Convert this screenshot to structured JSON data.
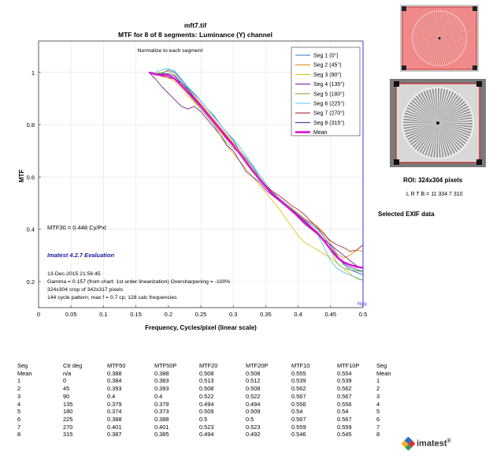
{
  "chart_data": {
    "type": "line",
    "title": "mft7.tif",
    "subtitle": "MTF for 8 of 8 segments:  Luminance (Y) channel",
    "note_top": "Normalize to each segment",
    "xlabel": "Frequency, Cycles/pixel (linear scale)",
    "ylabel": "MTF",
    "xlim": [
      0,
      0.5
    ],
    "ylim": [
      0.1,
      1.12
    ],
    "xticks": [
      "0",
      "0.05",
      "0.1",
      "0.15",
      "0.2",
      "0.25",
      "0.3",
      "0.35",
      "0.4",
      "0.45",
      "0.5"
    ],
    "xtick_values": [
      0,
      0.05,
      0.1,
      0.15,
      0.2,
      0.25,
      0.3,
      0.35,
      0.4,
      0.45,
      0.5
    ],
    "yticks": [
      "0.2",
      "0.4",
      "0.6",
      "0.8",
      "1"
    ],
    "ytick_values": [
      0.2,
      0.4,
      0.6,
      0.8,
      1.0
    ],
    "grid": true,
    "legend_position": "top-right",
    "nyquist_label": "Nyq",
    "nyquist_x": 0.5,
    "annotations": {
      "mtf30": "MTF30 = 0.448 Cy/Pxl",
      "evaluation": "Imatest 4.2.7 Evaluation",
      "info_lines": [
        "13-Dec-2015 21:56:45",
        "Gamma = 0.157 (from chart: 1st order linearization)  Oversharpening = -100%",
        "324x304 crop of 342x317 pixels",
        "144 cycle pattern;  max f = 0.7 cp;  128 calc frequencies"
      ]
    },
    "x": [
      0.17,
      0.18,
      0.19,
      0.2,
      0.21,
      0.22,
      0.23,
      0.24,
      0.25,
      0.26,
      0.27,
      0.28,
      0.29,
      0.3,
      0.31,
      0.32,
      0.33,
      0.34,
      0.35,
      0.36,
      0.37,
      0.38,
      0.39,
      0.4,
      0.41,
      0.42,
      0.43,
      0.44,
      0.45,
      0.46,
      0.47,
      0.48,
      0.49,
      0.5
    ],
    "series": [
      {
        "name": "Seg 1 (0°)",
        "color": "#2b74b8",
        "values": [
          1.0,
          0.995,
          0.995,
          1.01,
          1.0,
          0.97,
          0.94,
          0.915,
          0.89,
          0.86,
          0.835,
          0.8,
          0.77,
          0.74,
          0.7,
          0.67,
          0.64,
          0.6,
          0.565,
          0.54,
          0.52,
          0.5,
          0.48,
          0.46,
          0.44,
          0.42,
          0.4,
          0.37,
          0.335,
          0.3,
          0.265,
          0.245,
          0.235,
          0.225
        ]
      },
      {
        "name": "Seg 2 (45°)",
        "color": "#e08a1a",
        "values": [
          1.0,
          0.995,
          1.0,
          1.005,
          0.99,
          0.96,
          0.93,
          0.905,
          0.88,
          0.85,
          0.82,
          0.79,
          0.76,
          0.73,
          0.7,
          0.665,
          0.63,
          0.595,
          0.57,
          0.545,
          0.52,
          0.5,
          0.48,
          0.46,
          0.44,
          0.425,
          0.41,
          0.385,
          0.345,
          0.305,
          0.29,
          0.3,
          0.32,
          0.315
        ]
      },
      {
        "name": "Seg 3 (90°)",
        "color": "#e0c21a",
        "values": [
          1.0,
          0.99,
          0.985,
          0.98,
          0.965,
          0.94,
          0.91,
          0.885,
          0.86,
          0.83,
          0.8,
          0.77,
          0.72,
          0.69,
          0.66,
          0.63,
          0.6,
          0.57,
          0.54,
          0.51,
          0.48,
          0.445,
          0.41,
          0.375,
          0.35,
          0.335,
          0.32,
          0.305,
          0.29,
          0.27,
          0.25,
          0.23,
          0.21,
          0.205
        ]
      },
      {
        "name": "Seg 4 (135°)",
        "color": "#7a2a8a",
        "values": [
          1.0,
          0.975,
          0.945,
          0.92,
          0.895,
          0.87,
          0.86,
          0.87,
          0.85,
          0.82,
          0.79,
          0.76,
          0.72,
          0.7,
          0.66,
          0.62,
          0.6,
          0.58,
          0.55,
          0.53,
          0.51,
          0.49,
          0.47,
          0.445,
          0.42,
          0.4,
          0.38,
          0.36,
          0.34,
          0.32,
          0.3,
          0.28,
          0.26,
          0.25
        ]
      },
      {
        "name": "Seg 5 (180°)",
        "color": "#7ab848",
        "values": [
          1.0,
          0.995,
          1.0,
          0.99,
          0.975,
          0.95,
          0.92,
          0.89,
          0.86,
          0.83,
          0.8,
          0.76,
          0.73,
          0.71,
          0.69,
          0.66,
          0.63,
          0.6,
          0.57,
          0.54,
          0.52,
          0.5,
          0.48,
          0.455,
          0.43,
          0.41,
          0.39,
          0.36,
          0.32,
          0.27,
          0.25,
          0.245,
          0.24,
          0.235
        ]
      },
      {
        "name": "Seg 6 (225°)",
        "color": "#5ac0e8",
        "values": [
          1.0,
          1.0,
          1.01,
          1.015,
          1.005,
          0.975,
          0.945,
          0.92,
          0.89,
          0.86,
          0.83,
          0.8,
          0.77,
          0.745,
          0.715,
          0.68,
          0.645,
          0.61,
          0.575,
          0.545,
          0.52,
          0.5,
          0.475,
          0.455,
          0.43,
          0.41,
          0.38,
          0.33,
          0.28,
          0.25,
          0.235,
          0.225,
          0.215,
          0.205
        ]
      },
      {
        "name": "Seg 7 (270°)",
        "color": "#b02a2a",
        "values": [
          1.0,
          0.995,
          0.985,
          0.98,
          0.975,
          0.96,
          0.935,
          0.905,
          0.875,
          0.845,
          0.815,
          0.785,
          0.755,
          0.725,
          0.69,
          0.655,
          0.62,
          0.59,
          0.565,
          0.545,
          0.53,
          0.51,
          0.49,
          0.475,
          0.455,
          0.43,
          0.405,
          0.38,
          0.355,
          0.34,
          0.33,
          0.315,
          0.32,
          0.34
        ]
      },
      {
        "name": "Seg 8 (315°)",
        "color": "#2a4a9a",
        "values": [
          1.0,
          0.99,
          0.995,
          0.995,
          0.985,
          0.96,
          0.935,
          0.9,
          0.87,
          0.84,
          0.81,
          0.78,
          0.75,
          0.72,
          0.69,
          0.655,
          0.62,
          0.59,
          0.56,
          0.535,
          0.515,
          0.495,
          0.475,
          0.455,
          0.435,
          0.41,
          0.385,
          0.355,
          0.32,
          0.29,
          0.27,
          0.255,
          0.245,
          0.24
        ]
      },
      {
        "name": "Mean",
        "color": "#e010d0",
        "values": [
          1.0,
          0.993,
          0.99,
          0.988,
          0.975,
          0.95,
          0.923,
          0.898,
          0.87,
          0.84,
          0.81,
          0.78,
          0.747,
          0.72,
          0.69,
          0.655,
          0.623,
          0.592,
          0.562,
          0.536,
          0.514,
          0.493,
          0.471,
          0.449,
          0.427,
          0.405,
          0.384,
          0.355,
          0.323,
          0.293,
          0.274,
          0.264,
          0.256,
          0.252
        ]
      }
    ]
  },
  "roi": {
    "title": "ROI:  324x304 pixels",
    "lrtb": "L R  T B = 11 334  7 310",
    "exif": "Selected EXIF data"
  },
  "table": {
    "headers": [
      "Seg",
      "Ctr deg",
      "MTF50",
      "MTF50P",
      "MTF20",
      "MTF20P",
      "MTF10",
      "MTF10P",
      "Seg"
    ],
    "rows": [
      [
        "Mean",
        "n/a",
        "0.388",
        "0.388",
        "0.508",
        "0.508",
        "0.555",
        "0.554",
        "Mean"
      ],
      [
        "1",
        "0",
        "0.384",
        "0.383",
        "0.513",
        "0.512",
        "0.539",
        "0.539",
        "1"
      ],
      [
        "2",
        "45",
        "0.393",
        "0.393",
        "0.508",
        "0.508",
        "0.562",
        "0.562",
        "2"
      ],
      [
        "3",
        "90",
        "0.4",
        "0.4",
        "0.522",
        "0.522",
        "0.567",
        "0.567",
        "3"
      ],
      [
        "4",
        "135",
        "0.379",
        "0.379",
        "0.494",
        "0.494",
        "0.556",
        "0.556",
        "4"
      ],
      [
        "5",
        "180",
        "0.374",
        "0.373",
        "0.509",
        "0.509",
        "0.54",
        "0.54",
        "5"
      ],
      [
        "6",
        "225",
        "0.388",
        "0.388",
        "0.5",
        "0.5",
        "0.567",
        "0.567",
        "6"
      ],
      [
        "7",
        "270",
        "0.401",
        "0.401",
        "0.523",
        "0.523",
        "0.559",
        "0.559",
        "7"
      ],
      [
        "8",
        "315",
        "0.387",
        "0.385",
        "0.494",
        "0.492",
        "0.546",
        "0.545",
        "8"
      ]
    ]
  },
  "logo": {
    "text": "imatest",
    "mark": "®"
  }
}
